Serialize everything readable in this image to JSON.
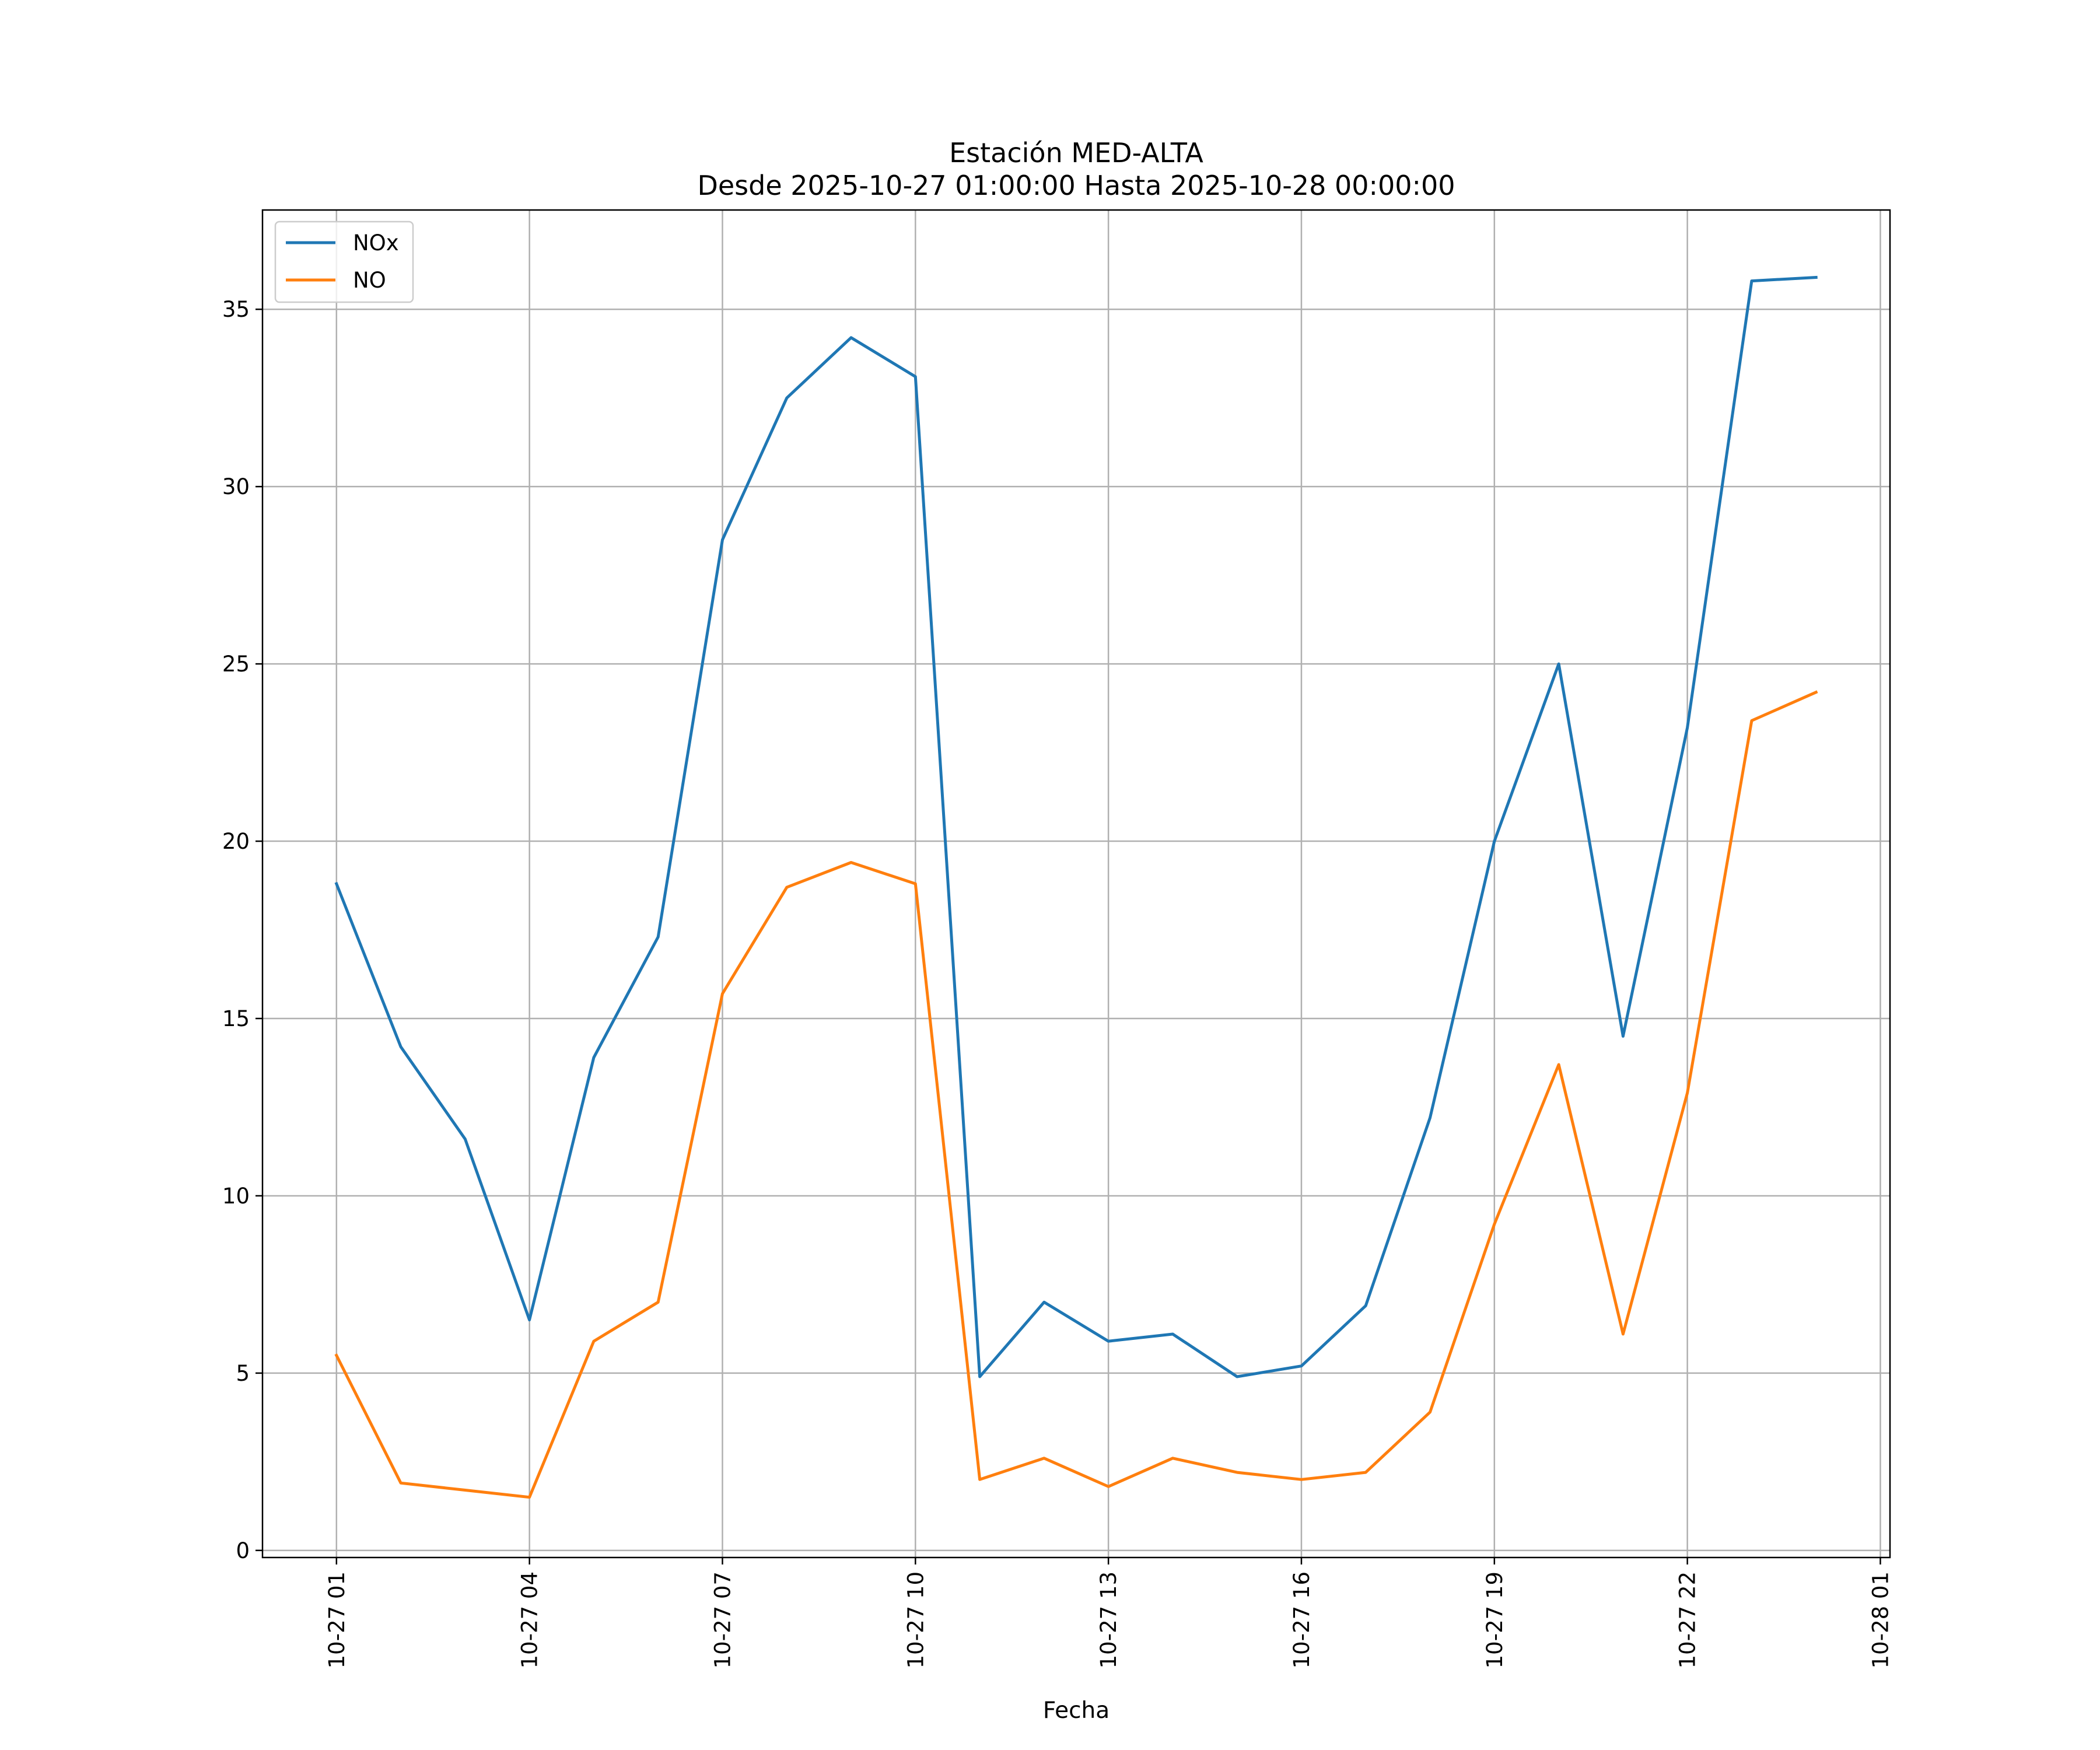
{
  "chart_data": {
    "type": "line",
    "title": "Estación MED-ALTA",
    "subtitle": "Desde 2025-10-27 01:00:00 Hasta 2025-10-28 00:00:00",
    "xlabel": "Fecha",
    "ylabel": "",
    "x": [
      "2025-10-27 01:00",
      "2025-10-27 02:00",
      "2025-10-27 03:00",
      "2025-10-27 04:00",
      "2025-10-27 05:00",
      "2025-10-27 06:00",
      "2025-10-27 07:00",
      "2025-10-27 08:00",
      "2025-10-27 09:00",
      "2025-10-27 10:00",
      "2025-10-27 11:00",
      "2025-10-27 12:00",
      "2025-10-27 13:00",
      "2025-10-27 14:00",
      "2025-10-27 15:00",
      "2025-10-27 16:00",
      "2025-10-27 17:00",
      "2025-10-27 18:00",
      "2025-10-27 19:00",
      "2025-10-27 20:00",
      "2025-10-27 21:00",
      "2025-10-27 22:00",
      "2025-10-27 23:00",
      "2025-10-28 00:00"
    ],
    "xlim": [
      "2025-10-26 23:51",
      "2025-10-28 01:09"
    ],
    "ylim": [
      -0.2,
      37.8
    ],
    "xticks": [
      {
        "value": "2025-10-27 01:00",
        "label": "10-27 01"
      },
      {
        "value": "2025-10-27 04:00",
        "label": "10-27 04"
      },
      {
        "value": "2025-10-27 07:00",
        "label": "10-27 07"
      },
      {
        "value": "2025-10-27 10:00",
        "label": "10-27 10"
      },
      {
        "value": "2025-10-27 13:00",
        "label": "10-27 13"
      },
      {
        "value": "2025-10-27 16:00",
        "label": "10-27 16"
      },
      {
        "value": "2025-10-27 19:00",
        "label": "10-27 19"
      },
      {
        "value": "2025-10-27 22:00",
        "label": "10-27 22"
      },
      {
        "value": "2025-10-28 01:00",
        "label": "10-28 01"
      }
    ],
    "yticks": [
      {
        "value": 0,
        "label": "0"
      },
      {
        "value": 5,
        "label": "5"
      },
      {
        "value": 10,
        "label": "10"
      },
      {
        "value": 15,
        "label": "15"
      },
      {
        "value": 20,
        "label": "20"
      },
      {
        "value": 25,
        "label": "25"
      },
      {
        "value": 30,
        "label": "30"
      },
      {
        "value": 35,
        "label": "35"
      }
    ],
    "grid": true,
    "legend_position": "top-left",
    "series": [
      {
        "name": "NOx",
        "color": "#1f77b4",
        "values": [
          18.8,
          14.2,
          11.6,
          6.5,
          13.9,
          17.3,
          28.5,
          32.5,
          34.2,
          33.1,
          4.9,
          7.0,
          5.9,
          6.1,
          4.9,
          5.2,
          6.9,
          12.2,
          20.0,
          25.0,
          14.5,
          23.2,
          35.8,
          35.9
        ]
      },
      {
        "name": "NO",
        "color": "#ff7f0e",
        "values": [
          5.5,
          1.9,
          1.7,
          1.5,
          5.9,
          7.0,
          15.7,
          18.7,
          19.4,
          18.8,
          2.0,
          2.6,
          1.8,
          2.6,
          2.2,
          2.0,
          2.2,
          3.9,
          9.2,
          13.7,
          6.1,
          12.9,
          23.4,
          24.2
        ]
      }
    ]
  }
}
